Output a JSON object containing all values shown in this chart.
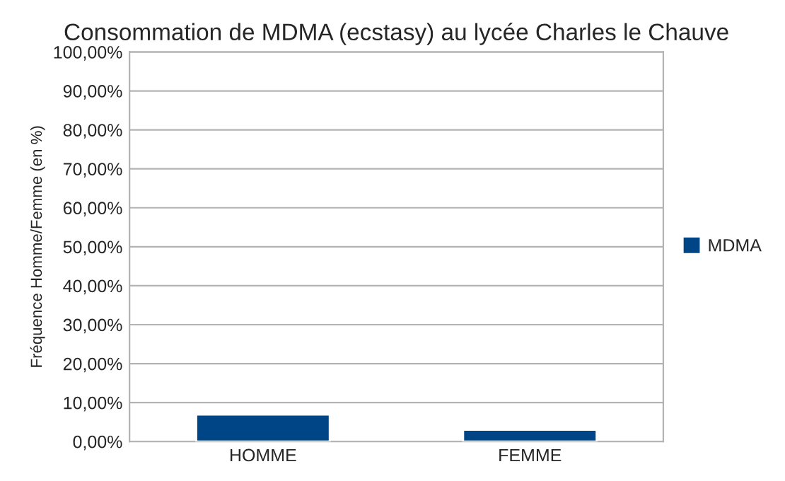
{
  "chart_data": {
    "type": "bar",
    "title": "Consommation de MDMA (ecstasy) au lycée Charles le Chauve",
    "ylabel": "Fréquence Homme/Femme (en %)",
    "categories": [
      "HOMME",
      "FEMME"
    ],
    "series": [
      {
        "name": "MDMA",
        "color": "#004586",
        "values": [
          6.9,
          3.0
        ]
      }
    ],
    "ylim": [
      0,
      100
    ],
    "yticks": [
      {
        "value": 0,
        "label": "0,00%"
      },
      {
        "value": 10,
        "label": "10,00%"
      },
      {
        "value": 20,
        "label": "20,00%"
      },
      {
        "value": 30,
        "label": "30,00%"
      },
      {
        "value": 40,
        "label": "40,00%"
      },
      {
        "value": 50,
        "label": "50,00%"
      },
      {
        "value": 60,
        "label": "60,00%"
      },
      {
        "value": 70,
        "label": "70,00%"
      },
      {
        "value": 80,
        "label": "80,00%"
      },
      {
        "value": 90,
        "label": "90,00%"
      },
      {
        "value": 100,
        "label": "100,00%"
      }
    ],
    "grid": "y",
    "legend": "right"
  }
}
